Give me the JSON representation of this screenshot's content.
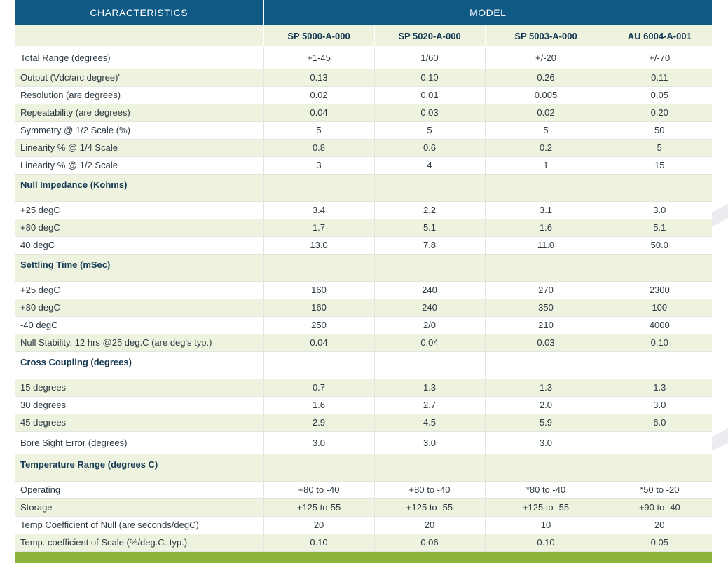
{
  "header": {
    "characteristics": "CHARACTERISTICS",
    "model": "MODEL"
  },
  "models": [
    "SP 5000-A-000",
    "SP 5020-A-000",
    "SP 5003-A-000",
    "AU 6004-A-001"
  ],
  "rows": [
    {
      "label": "Total Range (degrees)",
      "values": [
        "+1-45",
        "1/60",
        "+/-20",
        "+/-70"
      ],
      "kind": "first"
    },
    {
      "label": "Output (Vdc/arc degree)'",
      "values": [
        "0.13",
        "0.10",
        "0.26",
        "0.11"
      ],
      "kind": "even"
    },
    {
      "label": "Resolution (are degrees)",
      "values": [
        "0.02",
        "0.01",
        "0.005",
        "0.05"
      ],
      "kind": "odd"
    },
    {
      "label": "Repeatability (are degrees)",
      "values": [
        "0.04",
        "0.03",
        "0.02",
        "0.20"
      ],
      "kind": "even"
    },
    {
      "label": "Symmetry @ 1/2 Scale (%)",
      "values": [
        "5",
        "5",
        "5",
        "50"
      ],
      "kind": "odd"
    },
    {
      "label": "Linearity % @ 1/4 Scale",
      "values": [
        "0.8",
        "0.6",
        "0.2",
        "5"
      ],
      "kind": "even"
    },
    {
      "label": "Linearity % @ 1/2 Scale",
      "values": [
        "3",
        "4",
        "1",
        "15"
      ],
      "kind": "odd"
    },
    {
      "label": "Null Impedance (Kohms)",
      "values": [
        "",
        "",
        "",
        ""
      ],
      "kind": "section"
    },
    {
      "label": "+25 degC",
      "values": [
        "3.4",
        "2.2",
        "3.1",
        "3.0"
      ],
      "kind": "odd"
    },
    {
      "label": "+80 degC",
      "values": [
        "1.7",
        "5.1",
        "1.6",
        "5.1"
      ],
      "kind": "even"
    },
    {
      "label": "40 degC",
      "values": [
        "13.0",
        "7.8",
        "11.0",
        "50.0"
      ],
      "kind": "odd"
    },
    {
      "label": "Settling Time (mSec)",
      "values": [
        "",
        "",
        "",
        ""
      ],
      "kind": "section"
    },
    {
      "label": "+25 degC",
      "values": [
        "160",
        "240",
        "270",
        "2300"
      ],
      "kind": "odd"
    },
    {
      "label": "+80 degC",
      "values": [
        "160",
        "240",
        "350",
        "100"
      ],
      "kind": "even"
    },
    {
      "label": "-40 degC",
      "values": [
        "250",
        "2/0",
        "210",
        "4000"
      ],
      "kind": "odd"
    },
    {
      "label": "Null Stability, 12 hrs @25 deg.C (are deg's typ.)",
      "values": [
        "0.04",
        "0.04",
        "0.03",
        "0.10"
      ],
      "kind": "even"
    },
    {
      "label": "Cross Coupling (degrees)",
      "values": [
        "",
        "",
        "",
        ""
      ],
      "kind": "section-white"
    },
    {
      "label": "15 degrees",
      "values": [
        "0.7",
        "1.3",
        "1.3",
        "1.3"
      ],
      "kind": "even"
    },
    {
      "label": "30 degrees",
      "values": [
        "1.6",
        "2.7",
        "2.0",
        "3.0"
      ],
      "kind": "odd"
    },
    {
      "label": "45 degrees",
      "values": [
        "2.9",
        "4.5",
        "5.9",
        "6.0"
      ],
      "kind": "even"
    },
    {
      "label": "Bore Sight Error (degrees)",
      "values": [
        "3.0",
        "3.0",
        "3.0",
        ""
      ],
      "kind": "tall"
    },
    {
      "label": "Temperature Range (degrees C)",
      "values": [
        "",
        "",
        "",
        ""
      ],
      "kind": "section"
    },
    {
      "label": "Operating",
      "values": [
        "+80 to -40",
        "+80 to -40",
        "*80 to -40",
        "*50 to -20"
      ],
      "kind": "odd"
    },
    {
      "label": "Storage",
      "values": [
        "+125 to-55",
        "+125 to -55",
        "+125 to -55",
        "+90 to -40"
      ],
      "kind": "even"
    },
    {
      "label": "Temp Coefficient of Null (are seconds/degC)",
      "values": [
        "20",
        "20",
        "10",
        "20"
      ],
      "kind": "odd"
    },
    {
      "label": "Temp. coefficient of Scale (%/deg.C. typ.)",
      "values": [
        "0.10",
        "0.06",
        "0.10",
        "0.05"
      ],
      "kind": "even"
    }
  ],
  "colors": {
    "header_bg": "#0e5a84",
    "stripe_bg": "#eef3df",
    "footer_bar": "#8db33c"
  }
}
